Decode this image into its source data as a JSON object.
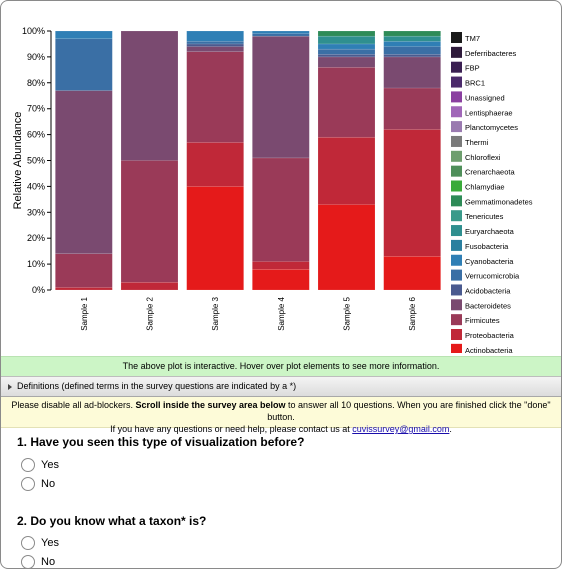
{
  "chart_data": {
    "type": "bar",
    "stacked": true,
    "ylabel": "Relative Abundance",
    "ylim": [
      0,
      100
    ],
    "yticks": [
      "0%",
      "10%",
      "20%",
      "30%",
      "40%",
      "50%",
      "60%",
      "70%",
      "80%",
      "90%",
      "100%"
    ],
    "categories": [
      "Sample 1",
      "Sample 2",
      "Sample 3",
      "Sample 4",
      "Sample 5",
      "Sample 6"
    ],
    "legend_position": "right",
    "legend": [
      {
        "name": "TM7",
        "color": "#1a1a1a"
      },
      {
        "name": "Deferribacteres",
        "color": "#2e1a3a"
      },
      {
        "name": "FBP",
        "color": "#3a1f52"
      },
      {
        "name": "BRC1",
        "color": "#4b2a6b"
      },
      {
        "name": "Unassigned",
        "color": "#8a3fa0"
      },
      {
        "name": "Lentisphaerae",
        "color": "#a066b8"
      },
      {
        "name": "Planctomycetes",
        "color": "#9a7ab0"
      },
      {
        "name": "Thermi",
        "color": "#7a7a7a"
      },
      {
        "name": "Chloroflexi",
        "color": "#6e9e6e"
      },
      {
        "name": "Crenarchaeota",
        "color": "#4f8f5a"
      },
      {
        "name": "Chlamydiae",
        "color": "#3aaa3a"
      },
      {
        "name": "Gemmatimonadetes",
        "color": "#2e8b57"
      },
      {
        "name": "Tenericutes",
        "color": "#3a9a8a"
      },
      {
        "name": "Euryarchaeota",
        "color": "#2f8f8f"
      },
      {
        "name": "Fusobacteria",
        "color": "#2a7f9f"
      },
      {
        "name": "Cyanobacteria",
        "color": "#2f7fb5"
      },
      {
        "name": "Verrucomicrobia",
        "color": "#3a6fa5"
      },
      {
        "name": "Acidobacteria",
        "color": "#4a5a8f"
      },
      {
        "name": "Bacteroidetes",
        "color": "#7a4a70"
      },
      {
        "name": "Firmicutes",
        "color": "#9a3a58"
      },
      {
        "name": "Proteobacteria",
        "color": "#c02838"
      },
      {
        "name": "Actinobacteria",
        "color": "#e51a1a"
      }
    ],
    "series": [
      {
        "name": "Actinobacteria",
        "values": [
          0,
          0,
          40,
          8,
          33,
          13
        ]
      },
      {
        "name": "Proteobacteria",
        "values": [
          1,
          3,
          17,
          3,
          26,
          49
        ]
      },
      {
        "name": "Firmicutes",
        "values": [
          13,
          47,
          35,
          40,
          27,
          16
        ]
      },
      {
        "name": "Bacteroidetes",
        "values": [
          63,
          50,
          2,
          47,
          4,
          12
        ]
      },
      {
        "name": "Acidobacteria",
        "values": [
          0,
          0,
          1,
          0,
          1,
          1
        ]
      },
      {
        "name": "Verrucomicrobia",
        "values": [
          20,
          0,
          1,
          1,
          2,
          3
        ]
      },
      {
        "name": "Cyanobacteria",
        "values": [
          3,
          0,
          4,
          1,
          2,
          2
        ]
      },
      {
        "name": "Euryarchaeota",
        "values": [
          0,
          0,
          0,
          0,
          3,
          2
        ]
      },
      {
        "name": "Gemmatimonadetes",
        "values": [
          0,
          0,
          0,
          0,
          2,
          2
        ]
      }
    ]
  },
  "info_bar": {
    "text": "The above plot is interactive. Hover over plot elements to see more information."
  },
  "definitions": {
    "label": "Definitions (defined terms in the survey questions are indicated by a *)"
  },
  "notice": {
    "part1": "Please disable all ad-blockers. ",
    "bold": "Scroll inside the survey area below",
    "part2": " to answer all 10 questions. When you are finished click the \"done\" button.",
    "line2": "If you have any questions or need help, please contact us at ",
    "email": "cuvissurvey@gmail.com",
    "end": "."
  },
  "questions": [
    {
      "title": "1. Have you seen this type of visualization before?",
      "options": [
        "Yes",
        "No"
      ]
    },
    {
      "title": "2. Do you know what a taxon* is?",
      "options": [
        "Yes",
        "No"
      ]
    }
  ]
}
